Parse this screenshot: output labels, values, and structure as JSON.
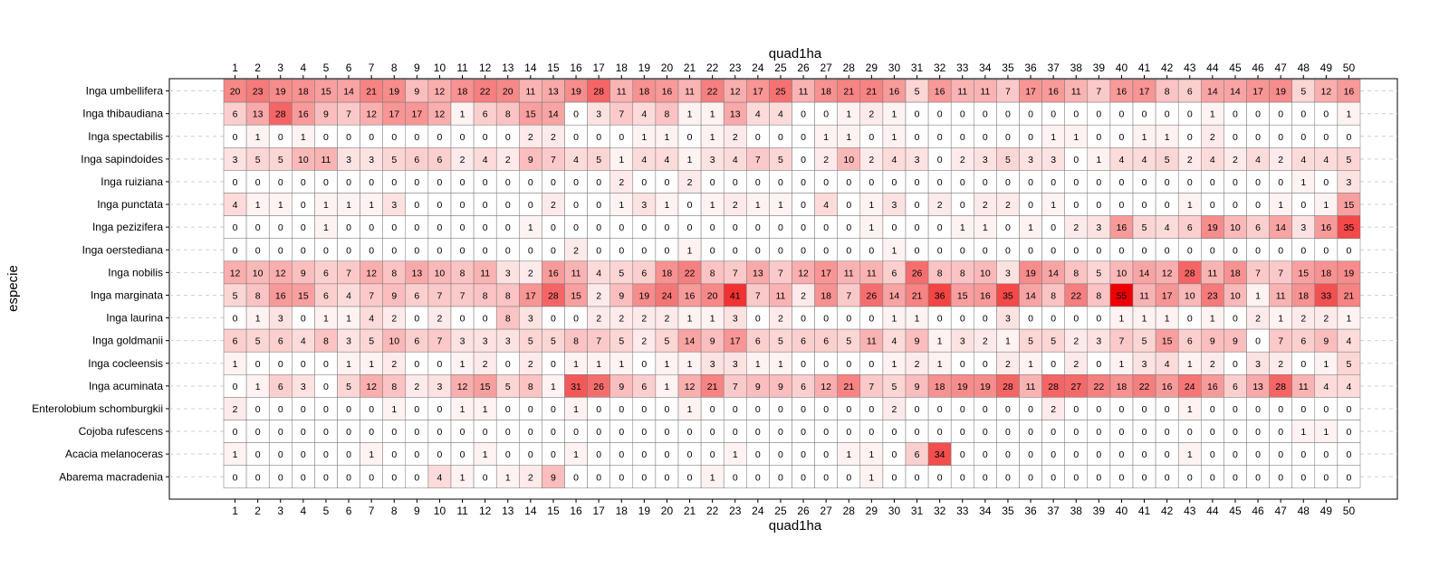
{
  "chart_data": {
    "type": "heatmap",
    "title": "",
    "xlabel": "quad1ha",
    "ylabel": "especie",
    "x": [
      1,
      2,
      3,
      4,
      5,
      6,
      7,
      8,
      9,
      10,
      11,
      12,
      13,
      14,
      15,
      16,
      17,
      18,
      19,
      20,
      21,
      22,
      23,
      24,
      25,
      26,
      27,
      28,
      29,
      30,
      31,
      32,
      33,
      34,
      35,
      36,
      37,
      38,
      39,
      40,
      41,
      42,
      43,
      44,
      45,
      46,
      47,
      48,
      49,
      50
    ],
    "y": [
      "Inga umbellifera",
      "Inga thibaudiana",
      "Inga spectabilis",
      "Inga sapindoides",
      "Inga ruiziana",
      "Inga punctata",
      "Inga pezizifera",
      "Inga oerstediana",
      "Inga nobilis",
      "Inga marginata",
      "Inga laurina",
      "Inga goldmanii",
      "Inga cocleensis",
      "Inga acuminata",
      "Enterolobium schomburgkii",
      "Cojoba rufescens",
      "Acacia melanoceras",
      "Abarema macradenia"
    ],
    "values": [
      [
        20,
        23,
        19,
        18,
        15,
        14,
        21,
        19,
        9,
        12,
        18,
        22,
        20,
        11,
        13,
        19,
        28,
        11,
        18,
        16,
        11,
        22,
        12,
        17,
        25,
        11,
        18,
        21,
        21,
        16,
        5,
        16,
        11,
        11,
        7,
        17,
        16,
        11,
        7,
        16,
        17,
        8,
        6,
        14,
        14,
        17,
        19,
        5,
        12,
        16
      ],
      [
        6,
        13,
        28,
        16,
        9,
        7,
        12,
        17,
        17,
        12,
        1,
        6,
        8,
        15,
        14,
        0,
        3,
        7,
        4,
        8,
        1,
        1,
        13,
        4,
        4,
        0,
        0,
        1,
        2,
        1,
        0,
        0,
        0,
        0,
        0,
        0,
        0,
        0,
        0,
        0,
        0,
        0,
        0,
        1,
        0,
        0,
        0,
        0,
        0,
        1
      ],
      [
        0,
        1,
        0,
        1,
        0,
        0,
        0,
        0,
        0,
        0,
        0,
        0,
        0,
        2,
        2,
        0,
        0,
        0,
        1,
        1,
        0,
        1,
        2,
        0,
        0,
        0,
        1,
        1,
        0,
        1,
        0,
        0,
        0,
        0,
        0,
        0,
        1,
        1,
        0,
        0,
        1,
        1,
        0,
        2,
        0,
        0,
        0,
        0,
        0,
        0
      ],
      [
        3,
        5,
        5,
        10,
        11,
        3,
        3,
        5,
        6,
        6,
        2,
        4,
        2,
        9,
        7,
        4,
        5,
        1,
        4,
        4,
        1,
        3,
        4,
        7,
        5,
        0,
        2,
        10,
        2,
        4,
        3,
        0,
        2,
        3,
        5,
        3,
        3,
        0,
        1,
        4,
        4,
        5,
        2,
        4,
        2,
        4,
        2,
        4,
        4,
        5
      ],
      [
        0,
        0,
        0,
        0,
        0,
        0,
        0,
        0,
        0,
        0,
        0,
        0,
        0,
        0,
        0,
        0,
        0,
        2,
        0,
        0,
        2,
        0,
        0,
        0,
        0,
        0,
        0,
        0,
        0,
        0,
        0,
        0,
        0,
        0,
        0,
        0,
        0,
        0,
        0,
        0,
        0,
        0,
        0,
        0,
        0,
        0,
        0,
        1,
        0,
        3
      ],
      [
        4,
        1,
        1,
        0,
        1,
        1,
        1,
        3,
        0,
        0,
        0,
        0,
        0,
        0,
        2,
        0,
        0,
        1,
        3,
        1,
        0,
        1,
        2,
        1,
        1,
        0,
        4,
        0,
        1,
        3,
        0,
        2,
        0,
        2,
        2,
        0,
        1,
        0,
        0,
        0,
        0,
        0,
        1,
        0,
        0,
        0,
        1,
        0,
        1,
        15
      ],
      [
        0,
        0,
        0,
        0,
        1,
        0,
        0,
        0,
        0,
        0,
        0,
        0,
        0,
        1,
        0,
        0,
        0,
        0,
        0,
        0,
        0,
        0,
        0,
        0,
        0,
        0,
        0,
        0,
        1,
        0,
        0,
        0,
        1,
        1,
        0,
        1,
        0,
        2,
        3,
        16,
        5,
        4,
        6,
        19,
        10,
        6,
        14,
        3,
        16,
        35
      ],
      [
        0,
        0,
        0,
        0,
        0,
        0,
        0,
        0,
        0,
        0,
        0,
        0,
        0,
        0,
        0,
        2,
        0,
        0,
        0,
        0,
        1,
        0,
        0,
        0,
        0,
        0,
        0,
        0,
        0,
        1,
        0,
        0,
        0,
        0,
        0,
        0,
        0,
        0,
        0,
        0,
        0,
        0,
        0,
        0,
        0,
        0,
        0,
        0,
        0,
        0
      ],
      [
        12,
        10,
        12,
        9,
        6,
        7,
        12,
        8,
        13,
        10,
        8,
        11,
        3,
        2,
        16,
        11,
        4,
        5,
        6,
        18,
        22,
        8,
        7,
        13,
        7,
        12,
        17,
        11,
        11,
        6,
        26,
        8,
        8,
        10,
        3,
        19,
        14,
        8,
        5,
        10,
        14,
        12,
        28,
        11,
        18,
        7,
        7,
        15,
        18,
        19
      ],
      [
        5,
        8,
        16,
        15,
        6,
        4,
        7,
        9,
        6,
        7,
        7,
        8,
        8,
        17,
        28,
        15,
        2,
        9,
        19,
        24,
        16,
        20,
        41,
        7,
        11,
        2,
        18,
        7,
        26,
        14,
        21,
        36,
        15,
        16,
        35,
        14,
        8,
        22,
        8,
        55,
        11,
        17,
        10,
        23,
        10,
        1,
        11,
        18,
        33,
        21
      ],
      [
        0,
        1,
        3,
        0,
        1,
        1,
        4,
        2,
        0,
        2,
        0,
        0,
        8,
        3,
        0,
        0,
        2,
        2,
        2,
        2,
        1,
        1,
        3,
        0,
        2,
        0,
        0,
        0,
        0,
        1,
        1,
        0,
        0,
        0,
        3,
        0,
        0,
        0,
        0,
        1,
        1,
        1,
        0,
        1,
        0,
        2,
        1,
        2,
        2,
        1
      ],
      [
        6,
        5,
        6,
        4,
        8,
        3,
        5,
        10,
        6,
        7,
        3,
        3,
        3,
        5,
        5,
        8,
        7,
        5,
        2,
        5,
        14,
        9,
        17,
        6,
        5,
        6,
        6,
        5,
        11,
        4,
        9,
        1,
        3,
        2,
        1,
        5,
        5,
        2,
        3,
        7,
        5,
        15,
        6,
        9,
        9,
        0,
        7,
        6,
        9,
        4
      ],
      [
        1,
        0,
        0,
        0,
        0,
        1,
        1,
        2,
        0,
        0,
        1,
        2,
        0,
        2,
        0,
        1,
        1,
        1,
        0,
        1,
        1,
        3,
        3,
        1,
        1,
        0,
        0,
        0,
        0,
        1,
        2,
        1,
        0,
        0,
        2,
        1,
        0,
        2,
        0,
        1,
        3,
        4,
        1,
        2,
        0,
        3,
        2,
        0,
        1,
        5
      ],
      [
        0,
        1,
        6,
        3,
        0,
        5,
        12,
        8,
        2,
        3,
        12,
        15,
        5,
        8,
        1,
        31,
        26,
        9,
        6,
        1,
        12,
        21,
        7,
        9,
        9,
        6,
        12,
        21,
        7,
        5,
        9,
        18,
        19,
        19,
        28,
        11,
        28,
        27,
        22,
        18,
        22,
        16,
        24,
        16,
        6,
        13,
        28,
        11,
        4,
        4
      ],
      [
        2,
        0,
        0,
        0,
        0,
        0,
        0,
        1,
        0,
        0,
        1,
        1,
        0,
        0,
        0,
        1,
        0,
        0,
        0,
        0,
        1,
        0,
        0,
        0,
        0,
        0,
        0,
        0,
        0,
        2,
        0,
        0,
        0,
        0,
        0,
        0,
        2,
        0,
        0,
        0,
        0,
        0,
        1,
        0,
        0,
        0,
        0,
        0,
        0,
        0
      ],
      [
        0,
        0,
        0,
        0,
        0,
        0,
        0,
        0,
        0,
        0,
        0,
        0,
        0,
        0,
        0,
        0,
        0,
        0,
        0,
        0,
        0,
        0,
        0,
        0,
        0,
        0,
        0,
        0,
        0,
        0,
        0,
        0,
        0,
        0,
        0,
        0,
        0,
        0,
        0,
        0,
        0,
        0,
        0,
        0,
        0,
        0,
        0,
        1,
        1,
        0
      ],
      [
        1,
        0,
        0,
        0,
        0,
        0,
        1,
        0,
        0,
        0,
        0,
        1,
        0,
        0,
        0,
        1,
        0,
        0,
        0,
        0,
        0,
        0,
        1,
        0,
        0,
        0,
        0,
        1,
        1,
        0,
        6,
        34,
        0,
        0,
        0,
        0,
        0,
        0,
        0,
        0,
        0,
        0,
        1,
        0,
        0,
        0,
        0,
        0,
        0,
        0
      ],
      [
        0,
        0,
        0,
        0,
        0,
        0,
        0,
        0,
        0,
        4,
        1,
        0,
        1,
        2,
        9,
        0,
        0,
        0,
        0,
        0,
        0,
        1,
        0,
        0,
        0,
        0,
        0,
        0,
        1,
        0,
        0,
        0,
        0,
        0,
        0,
        0,
        0,
        0,
        0,
        0,
        0,
        0,
        0,
        0,
        0,
        0,
        0,
        0,
        0,
        0
      ]
    ],
    "color_scale": {
      "low": "#ffffff",
      "high": "#ee0000",
      "vmax": 55
    },
    "show_cell_labels": true,
    "x_ticks_top": true,
    "x_ticks_bottom": true,
    "grid": true
  }
}
